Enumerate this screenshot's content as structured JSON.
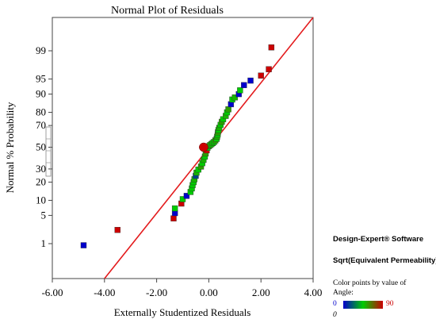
{
  "chart_data": {
    "type": "scatter",
    "title": "Normal Plot of Residuals",
    "xlabel": "Externally Studentized Residuals",
    "ylabel": "Normal % Probability",
    "xlim": [
      -6.0,
      4.0
    ],
    "xticks": [
      "-6.00",
      "-4.00",
      "-2.00",
      "0.00",
      "2.00",
      "4.00"
    ],
    "yticks": [
      "1",
      "5",
      "10",
      "20",
      "30",
      "50",
      "70",
      "80",
      "90",
      "95",
      "99"
    ],
    "y_scale": "normal-probability",
    "reference_line": {
      "x": [
        -4.0,
        4.0
      ],
      "y": [
        0.017,
        99.97
      ]
    },
    "grid": false,
    "points": [
      {
        "x": -4.8,
        "y": 0.9,
        "angle": 0
      },
      {
        "x": -3.5,
        "y": 2.3,
        "angle": 90
      },
      {
        "x": -1.35,
        "y": 4.3,
        "angle": 90
      },
      {
        "x": -1.3,
        "y": 5.6,
        "angle": 0
      },
      {
        "x": -1.3,
        "y": 7.0,
        "angle": 45
      },
      {
        "x": -1.05,
        "y": 8.7,
        "angle": 90
      },
      {
        "x": -1.0,
        "y": 10.5,
        "angle": 45
      },
      {
        "x": -0.85,
        "y": 12.0,
        "angle": 0
      },
      {
        "x": -0.7,
        "y": 14.0,
        "angle": 45
      },
      {
        "x": -0.65,
        "y": 16.0,
        "angle": 45
      },
      {
        "x": -0.62,
        "y": 18.0,
        "angle": 45
      },
      {
        "x": -0.58,
        "y": 20.0,
        "angle": 45
      },
      {
        "x": -0.55,
        "y": 22.0,
        "angle": 50
      },
      {
        "x": -0.5,
        "y": 24.5,
        "angle": 15
      },
      {
        "x": -0.47,
        "y": 27.0,
        "angle": 50
      },
      {
        "x": -0.4,
        "y": 29.5,
        "angle": 45
      },
      {
        "x": -0.3,
        "y": 32.0,
        "angle": 55
      },
      {
        "x": -0.25,
        "y": 35.0,
        "angle": 45
      },
      {
        "x": -0.2,
        "y": 38.0,
        "angle": 50
      },
      {
        "x": -0.15,
        "y": 41.0,
        "angle": 45
      },
      {
        "x": -0.12,
        "y": 44.0,
        "angle": 55
      },
      {
        "x": -0.08,
        "y": 47.0,
        "angle": 90
      },
      {
        "x": -0.05,
        "y": 49.5,
        "angle": 45
      },
      {
        "x": 0.0,
        "y": 51.0,
        "angle": 50
      },
      {
        "x": 0.05,
        "y": 52.0,
        "angle": 55
      },
      {
        "x": 0.1,
        "y": 53.0,
        "angle": 45
      },
      {
        "x": 0.15,
        "y": 54.0,
        "angle": 50
      },
      {
        "x": 0.2,
        "y": 55.0,
        "angle": 45
      },
      {
        "x": 0.25,
        "y": 56.5,
        "angle": 55
      },
      {
        "x": 0.3,
        "y": 58.0,
        "angle": 45
      },
      {
        "x": 0.32,
        "y": 60.0,
        "angle": 50
      },
      {
        "x": 0.34,
        "y": 62.0,
        "angle": 45
      },
      {
        "x": 0.35,
        "y": 64.0,
        "angle": 55
      },
      {
        "x": 0.37,
        "y": 66.0,
        "angle": 45
      },
      {
        "x": 0.4,
        "y": 68.0,
        "angle": 50
      },
      {
        "x": 0.45,
        "y": 70.5,
        "angle": 45
      },
      {
        "x": 0.5,
        "y": 73.0,
        "angle": 55
      },
      {
        "x": 0.55,
        "y": 75.0,
        "angle": 45
      },
      {
        "x": 0.65,
        "y": 77.5,
        "angle": 50
      },
      {
        "x": 0.7,
        "y": 80.0,
        "angle": 45
      },
      {
        "x": 0.75,
        "y": 82.0,
        "angle": 55
      },
      {
        "x": 0.85,
        "y": 85.0,
        "angle": 0
      },
      {
        "x": 0.9,
        "y": 87.5,
        "angle": 45
      },
      {
        "x": 1.0,
        "y": 88.5,
        "angle": 50
      },
      {
        "x": 1.15,
        "y": 90.0,
        "angle": 0
      },
      {
        "x": 1.2,
        "y": 91.5,
        "angle": 45
      },
      {
        "x": 1.35,
        "y": 93.3,
        "angle": 0
      },
      {
        "x": 1.6,
        "y": 94.6,
        "angle": 0
      },
      {
        "x": 2.0,
        "y": 95.8,
        "angle": 90
      },
      {
        "x": 2.3,
        "y": 97.0,
        "angle": 90
      },
      {
        "x": 2.4,
        "y": 99.2,
        "angle": 90
      }
    ],
    "highlight_point": {
      "x": -0.2,
      "y": 50.0,
      "color": "#cc0000"
    },
    "colors": {
      "line": "#e31a1c",
      "ramp": [
        "#0000cc",
        "#00cc00",
        "#cc0000"
      ]
    }
  },
  "sidebar": {
    "software": "Design-Expert® Software",
    "response": "Sqrt(Equivalent Permeability)",
    "color_note": "Color points by value of",
    "color_var": "Angle:",
    "scale_min": "0",
    "scale_max": "90",
    "scale_min_italic": "0"
  }
}
